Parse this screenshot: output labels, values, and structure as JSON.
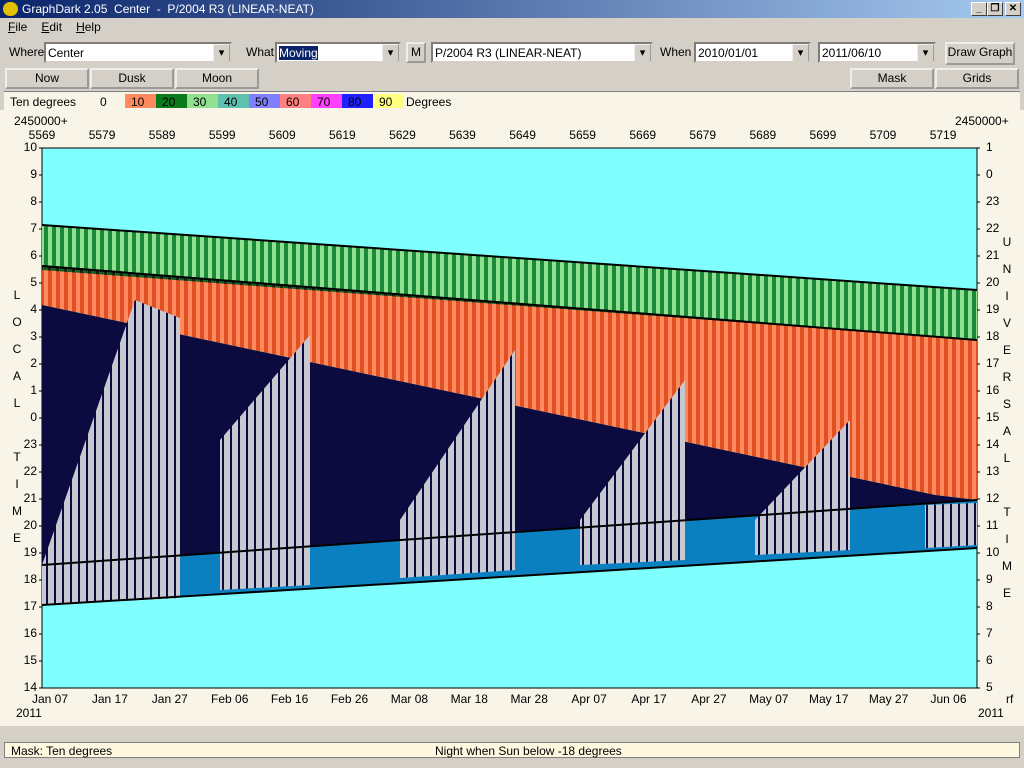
{
  "window": {
    "title": "GraphDark 2.05  Center  -  P/2004 R3 (LINEAR-NEAT)",
    "menu": [
      "File",
      "Edit",
      "Help"
    ]
  },
  "toolbar": {
    "where_label": "Where",
    "where": "Center",
    "what_label": "What",
    "what": "Moving",
    "m_button": "M",
    "object": "P/2004 R3 (LINEAR-NEAT)",
    "when_label": "When",
    "start": "2010/01/01",
    "end": "2011/06/10",
    "draw": "Draw Graph"
  },
  "buttons": {
    "left": [
      "Now",
      "Dusk",
      "Moon"
    ],
    "right": [
      "Mask",
      "Grids"
    ]
  },
  "legend": {
    "label": "Ten degrees",
    "steps": [
      0,
      10,
      20,
      30,
      40,
      50,
      60,
      70,
      80,
      90
    ],
    "unit": "Degrees"
  },
  "graph": {
    "jd_prefix": "2450000+",
    "jd": [
      5569,
      5579,
      5589,
      5599,
      5609,
      5619,
      5629,
      5639,
      5649,
      5659,
      5669,
      5679,
      5689,
      5699,
      5709,
      5719
    ],
    "local_title": "LOCAL TIME",
    "ut_title": "UNIVERSAL TIME",
    "local_ticks": [
      10,
      9,
      8,
      7,
      6,
      5,
      4,
      3,
      2,
      1,
      0,
      23,
      22,
      21,
      20,
      19,
      18,
      17,
      16,
      15,
      14
    ],
    "ut_ticks": [
      1,
      0,
      23,
      22,
      21,
      20,
      19,
      18,
      17,
      16,
      15,
      14,
      13,
      12,
      11,
      10,
      9,
      8,
      7,
      6,
      5
    ],
    "dates": [
      "Jan 07",
      "Jan 17",
      "Jan 27",
      "Feb 06",
      "Feb 16",
      "Feb 26",
      "Mar 08",
      "Mar 18",
      "Mar 28",
      "Apr 07",
      "Apr 17",
      "Apr 27",
      "May 07",
      "May 17",
      "May 27",
      "Jun 06"
    ],
    "year": "2011",
    "corner": "rf"
  },
  "status": {
    "mask": "Mask:  Ten degrees",
    "night": "Night when Sun below -18 degrees"
  }
}
